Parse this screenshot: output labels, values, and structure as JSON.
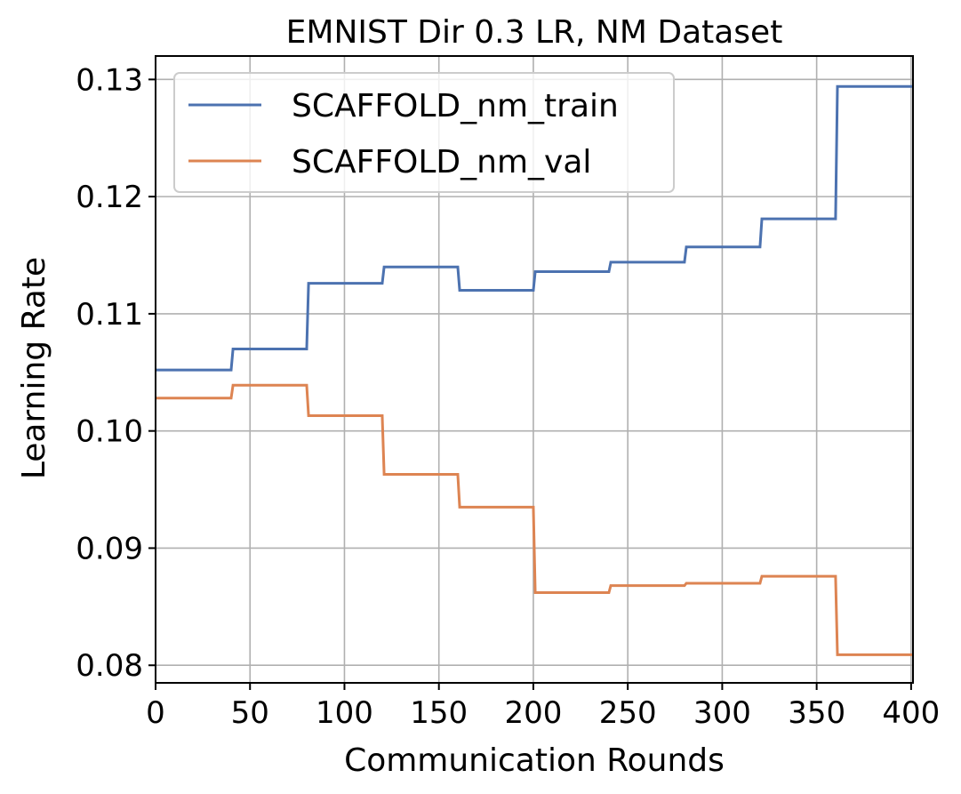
{
  "chart_data": {
    "type": "line",
    "title": "EMNIST Dir 0.3 LR, NM Dataset",
    "xlabel": "Communication Rounds",
    "ylabel": "Learning Rate",
    "xlim": [
      0,
      401
    ],
    "ylim": [
      0.0785,
      0.132
    ],
    "xticks": [
      0,
      50,
      100,
      150,
      200,
      250,
      300,
      350,
      400
    ],
    "xtick_labels": [
      "0",
      "50",
      "100",
      "150",
      "200",
      "250",
      "300",
      "350",
      "400"
    ],
    "yticks": [
      0.08,
      0.09,
      0.1,
      0.11,
      0.12,
      0.13
    ],
    "ytick_labels": [
      "0.08",
      "0.09",
      "0.10",
      "0.11",
      "0.12",
      "0.13"
    ],
    "grid": true,
    "legend_position": "upper-left",
    "series": [
      {
        "name": "SCAFFOLD_nm_train",
        "color": "#4c72b0",
        "x": [
          0,
          40,
          41,
          80,
          81,
          120,
          121,
          160,
          161,
          200,
          201,
          240,
          241,
          280,
          281,
          320,
          321,
          360,
          361,
          401
        ],
        "y": [
          0.1052,
          0.1052,
          0.107,
          0.107,
          0.1126,
          0.1126,
          0.114,
          0.114,
          0.112,
          0.112,
          0.1136,
          0.1136,
          0.1144,
          0.1144,
          0.1157,
          0.1157,
          0.1181,
          0.1181,
          0.1294,
          0.1294
        ]
      },
      {
        "name": "SCAFFOLD_nm_val",
        "color": "#dd8452",
        "x": [
          0,
          40,
          41,
          80,
          81,
          120,
          121,
          160,
          161,
          200,
          201,
          240,
          241,
          280,
          281,
          320,
          321,
          360,
          361,
          401
        ],
        "y": [
          0.1028,
          0.1028,
          0.1039,
          0.1039,
          0.1013,
          0.1013,
          0.0963,
          0.0963,
          0.0935,
          0.0935,
          0.0862,
          0.0862,
          0.0868,
          0.0868,
          0.087,
          0.087,
          0.0876,
          0.0876,
          0.0809,
          0.0809
        ]
      }
    ]
  }
}
